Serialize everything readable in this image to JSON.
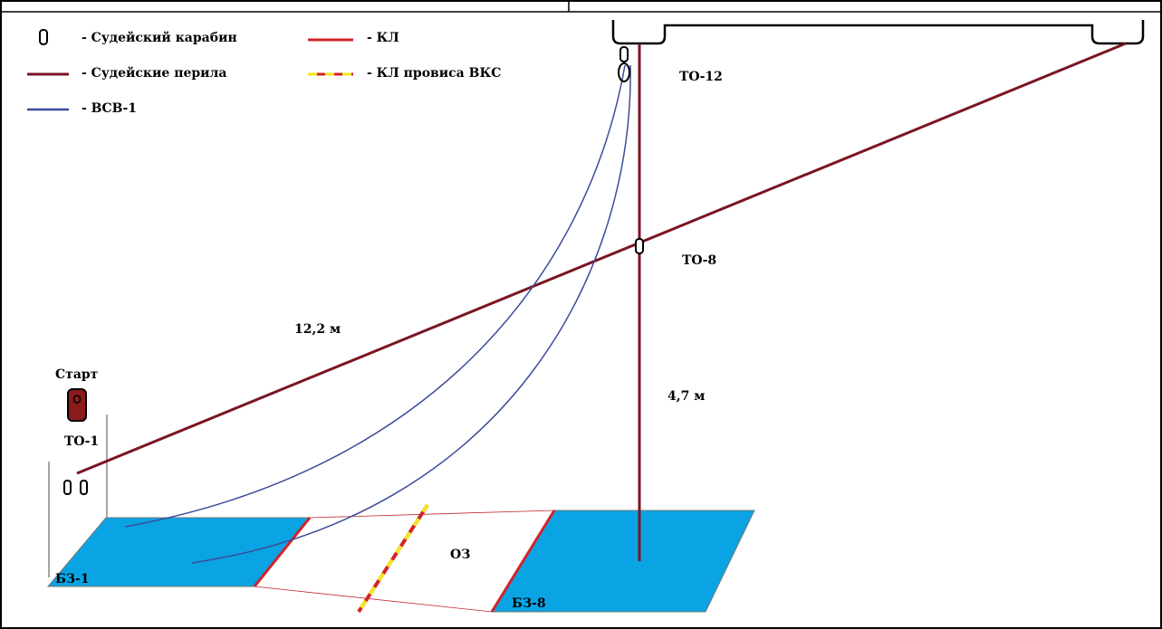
{
  "legend": {
    "carabiner": "- Судейский карабин",
    "judge_rail": "- Судейские перила",
    "vsv": "- ВСВ-1",
    "kl": "- КЛ",
    "kl_sag": "- КЛ провиса ВКС"
  },
  "labels": {
    "start": "Старт",
    "to1": "ТО-1",
    "to8": "ТО-8",
    "to12": "ТО-12",
    "bz1": "БЗ-1",
    "bz8": "БЗ-8",
    "oz": "ОЗ",
    "dist_rail": "12,2 м",
    "dist_vertical": "4,7 м"
  },
  "colors": {
    "judge_rail": "#7a1523",
    "vsv": "#3d4c9a",
    "kl": "#d2232a",
    "kl_sag_yellow": "#f5e61c",
    "safe_zone": "#0aa4e4",
    "start_marker": "#8b1a1a"
  }
}
